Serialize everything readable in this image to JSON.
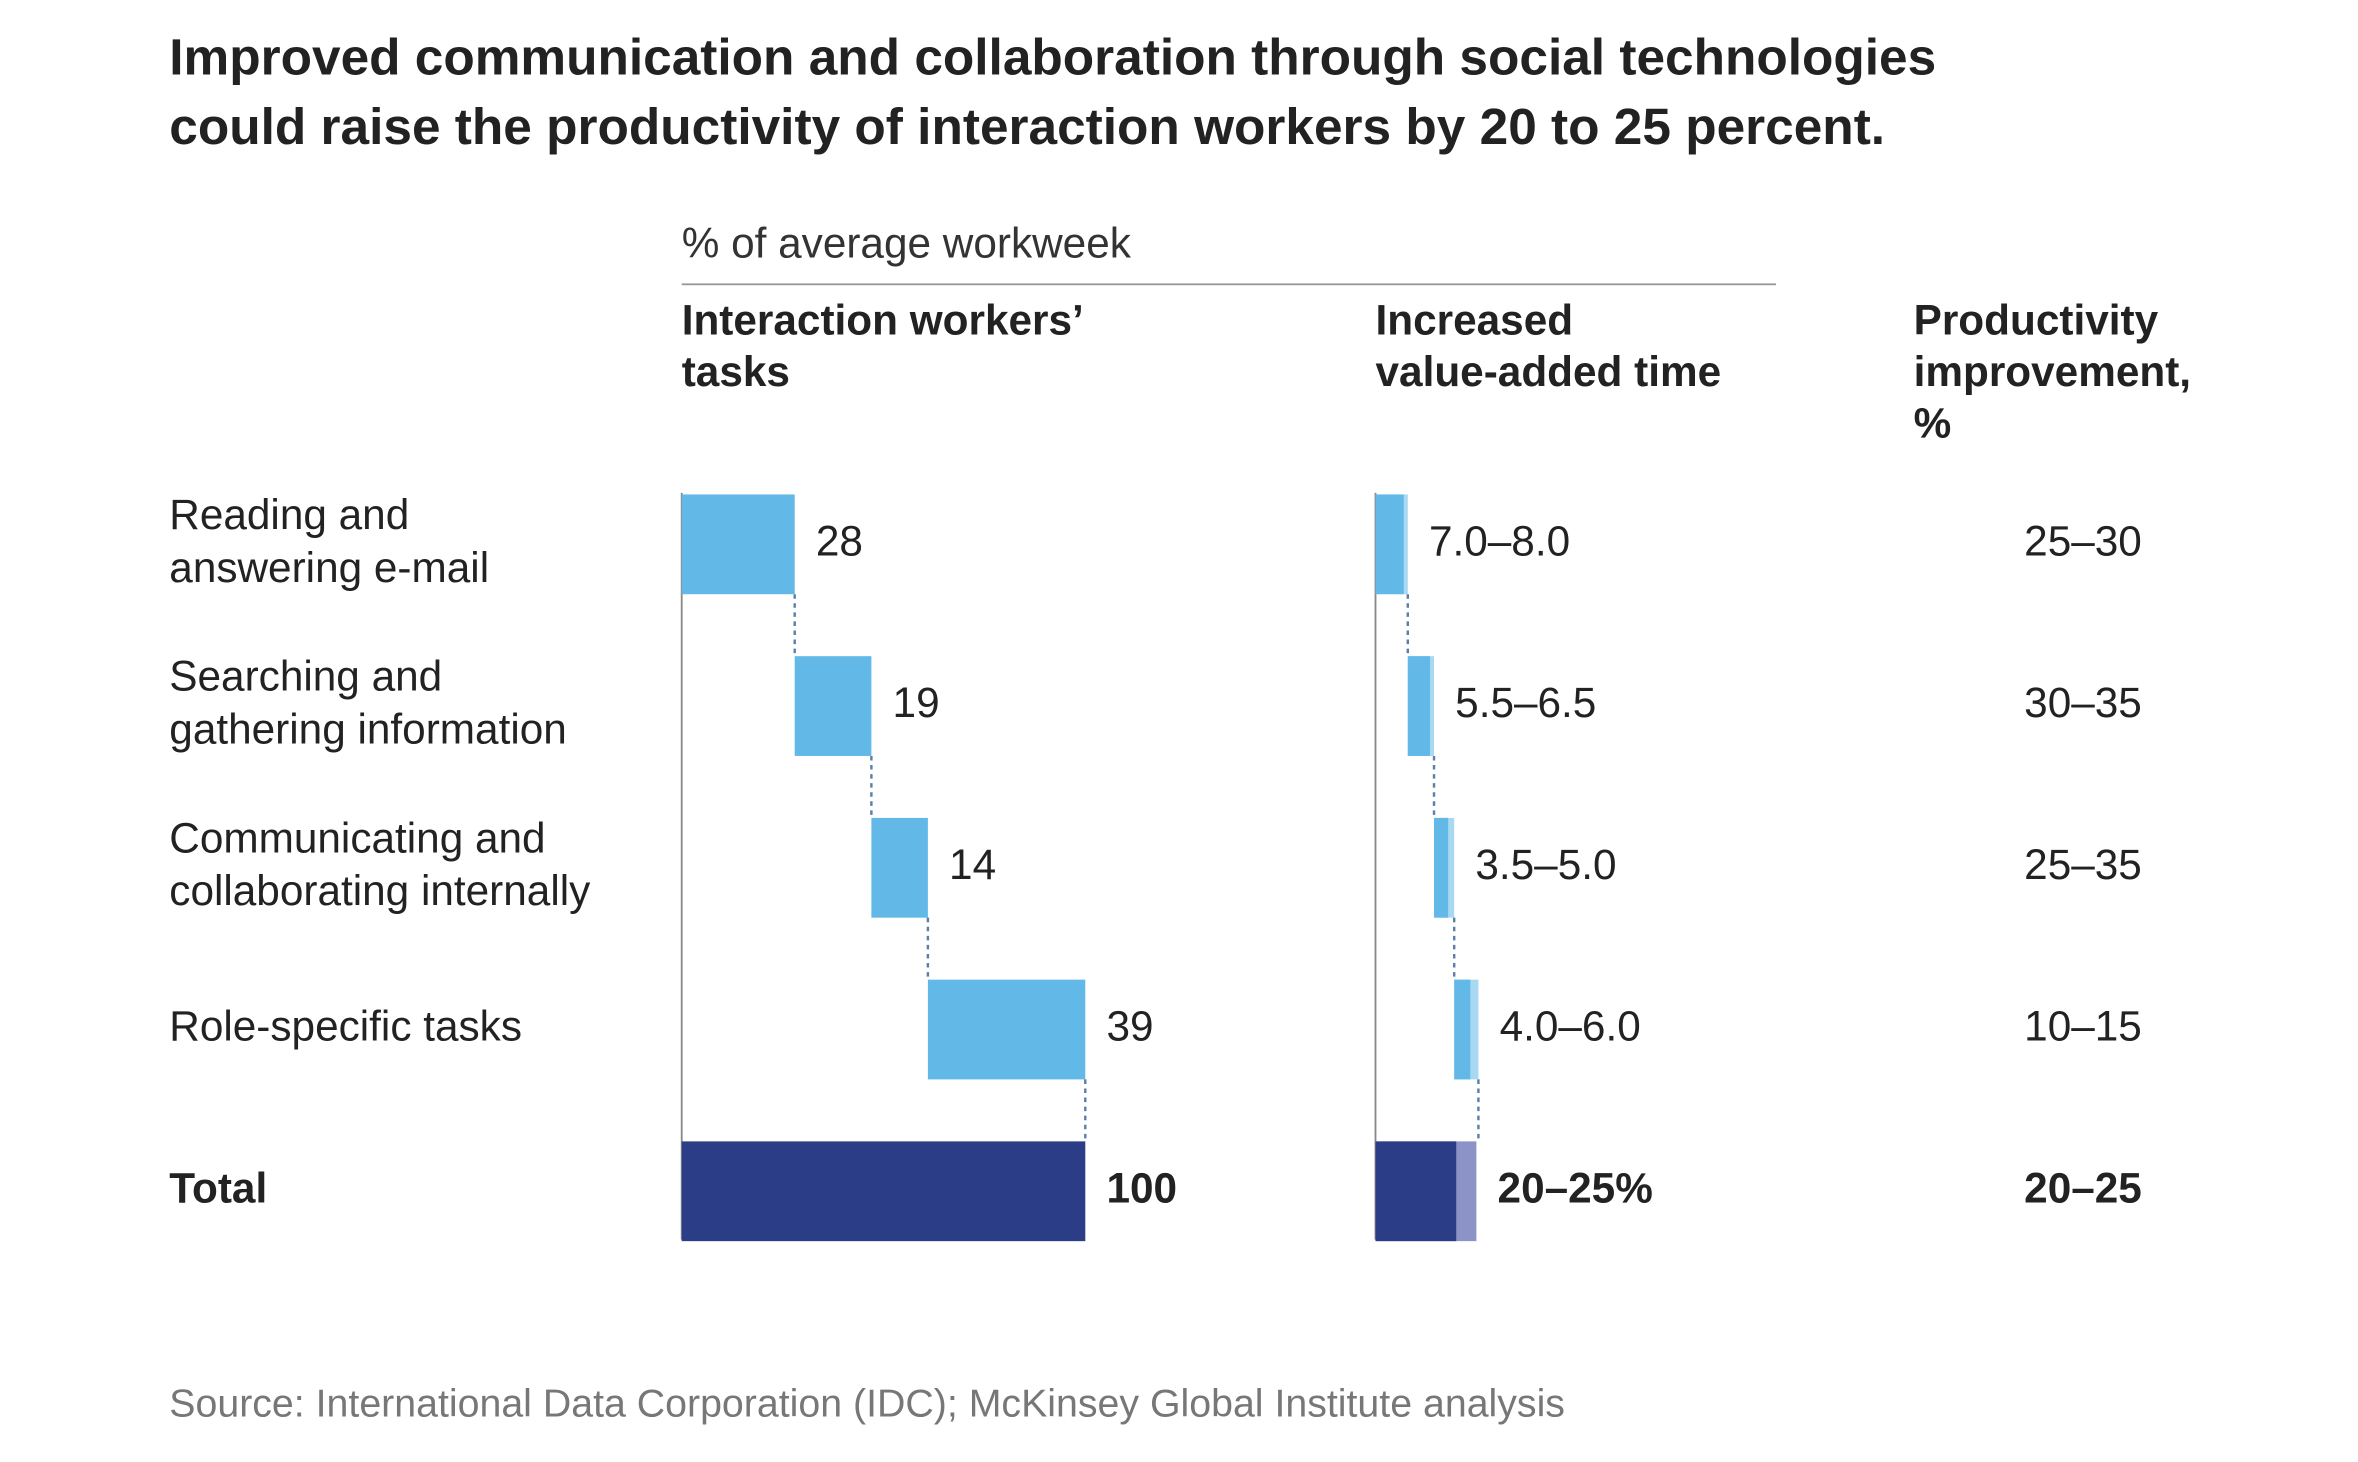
{
  "chart_data": {
    "type": "waterfall",
    "title": "Improved communication and collaboration through social technologies\ncould raise the productivity of interaction workers by 20 to 25 percent.",
    "subtitle": "% of average workweek",
    "categories": [
      "Reading and\nanswering e-mail",
      "Searching and\ngathering information",
      "Communicating and\ncollaborating internally",
      "Role-specific tasks",
      "Total"
    ],
    "tasks": {
      "name": "Interaction workers’\ntasks",
      "values": [
        28,
        19,
        14,
        39,
        100
      ],
      "color": "#62b9e8",
      "total_color": "#2b3d87"
    },
    "value_added": {
      "name": "Increased\nvalue-added time",
      "low": [
        7.0,
        5.5,
        3.5,
        4.0,
        20
      ],
      "high": [
        8.0,
        6.5,
        5.0,
        6.0,
        25
      ],
      "value_labels": [
        "7.0–8.0",
        "5.5–6.5",
        "3.5–5.0",
        "4.0–6.0",
        "20–25%"
      ],
      "color": "#62b9e8",
      "range_color": "#a9d8f2",
      "total_color": "#2b3d87",
      "total_range_color": "#8c93c6"
    },
    "productivity": {
      "name": "Productivity\nimprovement,\n%",
      "labels": [
        "25–30",
        "30–35",
        "25–35",
        "10–15",
        "20–25"
      ]
    },
    "source": "Source: International Data Corporation (IDC); McKinsey Global Institute analysis"
  }
}
